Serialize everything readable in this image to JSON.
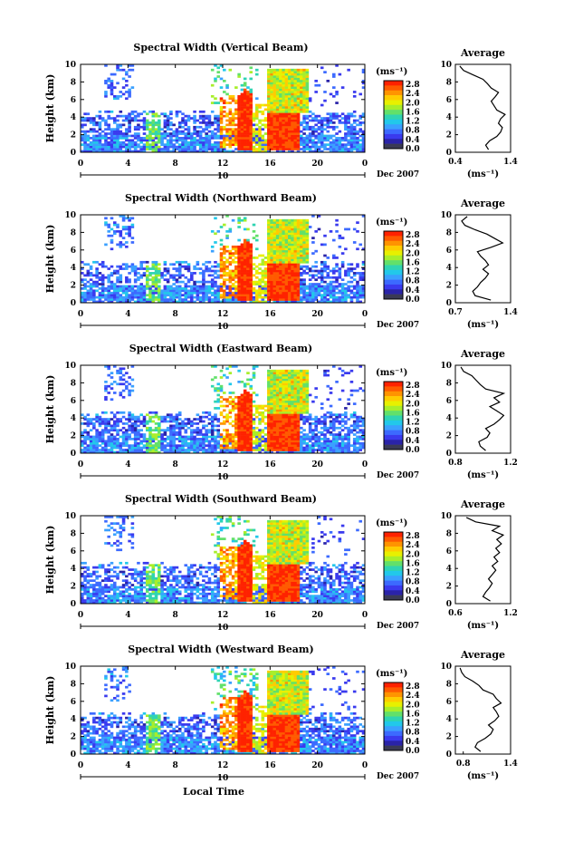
{
  "figure": {
    "xlabel": "Local Time",
    "date_label": "Dec 2007",
    "day_label": "10",
    "unit_label": "(ms⁻¹)",
    "avg_title": "Average",
    "ylabel": "Height (km)"
  },
  "colorbar": {
    "ticks": [
      "2.8",
      "2.4",
      "2.0",
      "1.6",
      "1.2",
      "0.8",
      "0.4",
      "0.0"
    ],
    "colors": [
      "#ff2200",
      "#ff5a00",
      "#ff9400",
      "#ffcc00",
      "#e8f000",
      "#a8ee2a",
      "#62e06a",
      "#2fd4b2",
      "#22c8ea",
      "#3aa0ff",
      "#3c6aff",
      "#3a3aee",
      "#2a23a8",
      "#3a3a55"
    ]
  },
  "chart_data": [
    {
      "type": "heatmap",
      "title": "Spectral Width (Vertical Beam)",
      "xlabel": "Local Time",
      "ylabel": "Height (km)",
      "x_ticks": [
        "0",
        "4",
        "8",
        "12",
        "16",
        "20",
        "0"
      ],
      "y_ticks": [
        "0",
        "2",
        "4",
        "6",
        "8",
        "10"
      ],
      "xlim": [
        0,
        24
      ],
      "ylim": [
        0,
        10
      ],
      "zlim": [
        0.0,
        2.8
      ],
      "profile": {
        "title": "Average",
        "xlabel": "(ms⁻¹)",
        "x_ticks": [
          "0.4",
          "1.4"
        ],
        "xlim": [
          0.4,
          1.4
        ],
        "height": [
          0.3,
          0.8,
          1.3,
          1.8,
          2.3,
          2.8,
          3.3,
          3.8,
          4.3,
          4.8,
          5.3,
          5.8,
          6.3,
          6.8,
          7.3,
          7.8,
          8.3,
          8.8,
          9.3,
          9.8
        ],
        "values": [
          1.0,
          0.95,
          1.02,
          1.15,
          1.22,
          1.25,
          1.18,
          1.22,
          1.3,
          1.15,
          1.1,
          1.05,
          1.12,
          1.18,
          1.05,
          0.98,
          0.9,
          0.72,
          0.55,
          0.48
        ]
      }
    },
    {
      "type": "heatmap",
      "title": "Spectral Width (Northward Beam)",
      "xlabel": "Local Time",
      "ylabel": "Height (km)",
      "x_ticks": [
        "0",
        "4",
        "8",
        "12",
        "16",
        "20",
        "0"
      ],
      "y_ticks": [
        "0",
        "2",
        "4",
        "6",
        "8",
        "10"
      ],
      "xlim": [
        0,
        24
      ],
      "ylim": [
        0,
        10
      ],
      "zlim": [
        0.0,
        2.8
      ],
      "profile": {
        "title": "Average",
        "xlabel": "(ms⁻¹)",
        "x_ticks": [
          "0.7",
          "1.4"
        ],
        "xlim": [
          0.7,
          1.4
        ],
        "height": [
          0.3,
          0.8,
          1.3,
          1.8,
          2.3,
          2.8,
          3.3,
          3.8,
          4.3,
          4.8,
          5.3,
          5.8,
          6.3,
          6.8,
          7.3,
          7.8,
          8.3,
          8.8,
          9.3,
          9.8
        ],
        "values": [
          1.15,
          0.95,
          0.92,
          0.98,
          1.02,
          1.08,
          1.12,
          1.05,
          1.12,
          1.08,
          1.02,
          0.98,
          1.15,
          1.3,
          1.2,
          1.1,
          0.95,
          0.82,
          0.78,
          0.85
        ]
      }
    },
    {
      "type": "heatmap",
      "title": "Spectral Width (Eastward Beam)",
      "xlabel": "Local Time",
      "ylabel": "Height (km)",
      "x_ticks": [
        "0",
        "4",
        "8",
        "12",
        "16",
        "20",
        "0"
      ],
      "y_ticks": [
        "0",
        "2",
        "4",
        "6",
        "8",
        "10"
      ],
      "xlim": [
        0,
        24
      ],
      "ylim": [
        0,
        10
      ],
      "zlim": [
        0.0,
        2.8
      ],
      "profile": {
        "title": "Average",
        "xlabel": "(ms⁻¹)",
        "x_ticks": [
          "0.8",
          "1.2"
        ],
        "xlim": [
          0.8,
          1.2
        ],
        "height": [
          0.3,
          0.8,
          1.3,
          1.8,
          2.3,
          2.8,
          3.3,
          3.8,
          4.3,
          4.8,
          5.3,
          5.8,
          6.3,
          6.8,
          7.3,
          7.8,
          8.3,
          8.8,
          9.3,
          9.8
        ],
        "values": [
          1.02,
          0.98,
          0.97,
          1.03,
          1.05,
          1.02,
          1.08,
          1.12,
          1.15,
          1.1,
          1.05,
          1.12,
          1.08,
          1.15,
          1.02,
          0.98,
          0.95,
          0.92,
          0.86,
          0.84
        ]
      }
    },
    {
      "type": "heatmap",
      "title": "Spectral Width (Southward Beam)",
      "xlabel": "Local Time",
      "ylabel": "Height (km)",
      "x_ticks": [
        "0",
        "4",
        "8",
        "12",
        "16",
        "20",
        "0"
      ],
      "y_ticks": [
        "0",
        "2",
        "4",
        "6",
        "8",
        "10"
      ],
      "xlim": [
        0,
        24
      ],
      "ylim": [
        0,
        10
      ],
      "zlim": [
        0.0,
        2.8
      ],
      "profile": {
        "title": "Average",
        "xlabel": "(ms⁻¹)",
        "x_ticks": [
          "0.6",
          "1.2"
        ],
        "xlim": [
          0.6,
          1.2
        ],
        "height": [
          0.3,
          0.8,
          1.3,
          1.8,
          2.3,
          2.8,
          3.3,
          3.8,
          4.3,
          4.8,
          5.3,
          5.8,
          6.3,
          6.8,
          7.3,
          7.8,
          8.3,
          8.8,
          9.3,
          9.8
        ],
        "values": [
          0.98,
          0.9,
          0.93,
          0.97,
          1.0,
          0.96,
          1.0,
          1.04,
          1.0,
          1.06,
          1.02,
          1.08,
          1.04,
          1.1,
          1.05,
          1.12,
          1.0,
          1.08,
          0.82,
          0.72
        ]
      }
    },
    {
      "type": "heatmap",
      "title": "Spectral Width (Westward Beam)",
      "xlabel": "Local Time",
      "ylabel": "Height (km)",
      "x_ticks": [
        "0",
        "4",
        "8",
        "12",
        "16",
        "20",
        "0"
      ],
      "y_ticks": [
        "0",
        "2",
        "4",
        "6",
        "8",
        "10"
      ],
      "xlim": [
        0,
        24
      ],
      "ylim": [
        0,
        10
      ],
      "zlim": [
        0.0,
        2.8
      ],
      "profile": {
        "title": "Average",
        "xlabel": "(ms⁻¹)",
        "x_ticks": [
          "0.8",
          "1.4"
        ],
        "xlim": [
          0.7,
          1.4
        ],
        "height": [
          0.3,
          0.8,
          1.3,
          1.8,
          2.3,
          2.8,
          3.3,
          3.8,
          4.3,
          4.8,
          5.3,
          5.8,
          6.3,
          6.8,
          7.3,
          7.8,
          8.3,
          8.8,
          9.3,
          9.8
        ],
        "values": [
          1.02,
          0.95,
          0.98,
          1.08,
          1.15,
          1.18,
          1.12,
          1.2,
          1.25,
          1.22,
          1.18,
          1.28,
          1.22,
          1.18,
          1.05,
          1.0,
          0.92,
          0.82,
          0.78,
          0.76
        ]
      }
    }
  ]
}
